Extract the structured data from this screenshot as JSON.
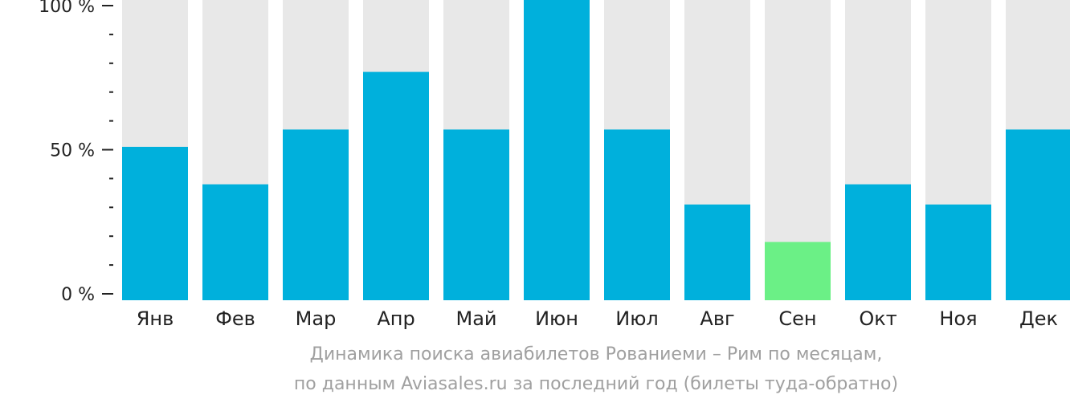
{
  "chart_data": {
    "type": "bar",
    "categories": [
      "Янв",
      "Фев",
      "Мар",
      "Апр",
      "Май",
      "Июн",
      "Июл",
      "Авг",
      "Сен",
      "Окт",
      "Ноя",
      "Дек"
    ],
    "values": [
      51,
      38,
      57,
      77,
      57,
      100,
      57,
      31,
      18,
      38,
      31,
      57
    ],
    "ylim": [
      0,
      100
    ],
    "y_ticks": [
      {
        "value": 100,
        "label": "100 %"
      },
      {
        "value": 50,
        "label": "50 %"
      },
      {
        "value": 0,
        "label": "0 %"
      }
    ],
    "y_minor_step": 10,
    "highlight_category": "Сен",
    "colors": {
      "bar": "#00b0dc",
      "highlight": "#6bf086",
      "track": "#e8e8e8",
      "axis": "#222222",
      "tick_label": "#222222"
    },
    "grid": false,
    "legend": false
  },
  "caption": {
    "line1": "Динамика поиска авиабилетов Рованиеми – Рим по месяцам,",
    "line2": "по данным Aviasales.ru за последний год (билеты туда-обратно)"
  }
}
